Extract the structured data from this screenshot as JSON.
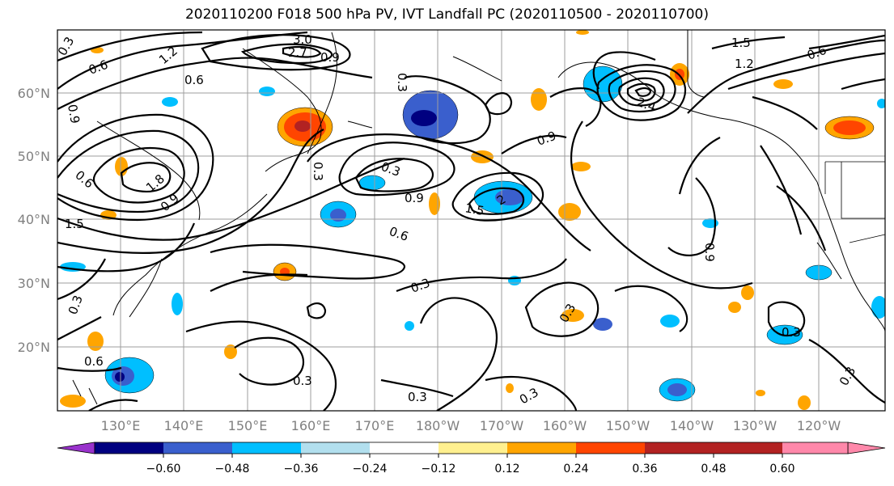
{
  "title": "2020110200 F018 500 hPa PV, IVT Landfall PC (2020110500 - 2020110700)",
  "lat_labels": [
    "60°N",
    "50°N",
    "40°N",
    "30°N",
    "20°N"
  ],
  "lon_labels": [
    "130°E",
    "140°E",
    "150°E",
    "160°E",
    "170°E",
    "180°W",
    "170°W",
    "160°W",
    "150°W",
    "140°W",
    "130°W",
    "120°W"
  ],
  "colorbar": {
    "colors": [
      "#9932cc",
      "#000080",
      "#3a5fcd",
      "#00bfff",
      "#b2dfee",
      "#ffffff",
      "#fff08f",
      "#ffa500",
      "#ff4500",
      "#b22222",
      "#ff88aa"
    ],
    "ticks": [
      "−0.60",
      "−0.48",
      "−0.36",
      "−0.24",
      "−0.12",
      "0.12",
      "0.24",
      "0.36",
      "0.48",
      "0.60"
    ]
  },
  "contour_labels": [
    "0.3",
    "0.6",
    "1.2",
    "3.0",
    "2.7",
    "0.9",
    "0.6",
    "0.3",
    "1.2",
    "0.6",
    "0.9",
    "1.5",
    "0.9",
    "1.5",
    "2.4",
    "1.8",
    "0.9",
    "0.6",
    "0.3",
    "0.9",
    "1.5",
    "2",
    "0.6",
    "0.9",
    "0.3",
    "0.3",
    "0.3",
    "0.6",
    "0.3",
    "0.3",
    "0.3",
    "0.3",
    "0.3",
    "0.3"
  ]
}
